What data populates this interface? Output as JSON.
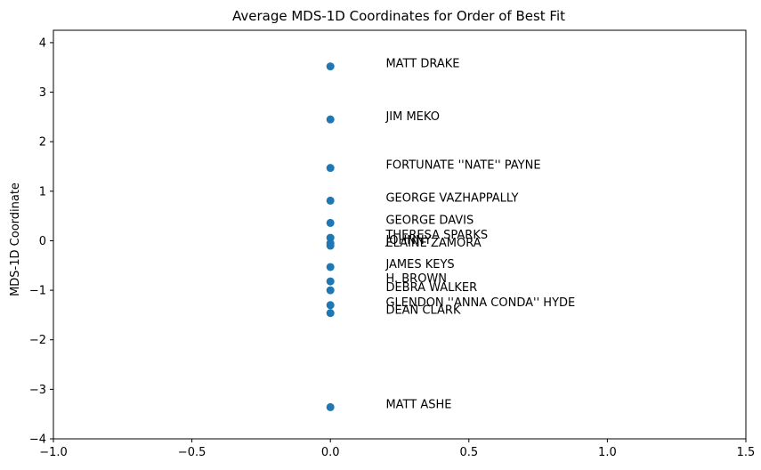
{
  "chart_data": {
    "type": "scatter",
    "title": "Average MDS-1D Coordinates for Order of Best Fit",
    "xlabel": "",
    "ylabel": "MDS-1D Coordinate",
    "xlim": [
      -1.0,
      1.5
    ],
    "ylim": [
      -4.0,
      4.25
    ],
    "xticks": [
      -1.0,
      -0.5,
      0.0,
      0.5,
      1.0,
      1.5
    ],
    "xtick_labels": [
      "−1.0",
      "−0.5",
      "0.0",
      "0.5",
      "1.0",
      "1.5"
    ],
    "yticks": [
      -4,
      -3,
      -2,
      -1,
      0,
      1,
      2,
      3,
      4
    ],
    "ytick_labels": [
      "−4",
      "−3",
      "−2",
      "−1",
      "0",
      "1",
      "2",
      "3",
      "4"
    ],
    "marker_color": "#1f77b4",
    "grid": false,
    "label_x_offset": 0.2,
    "points": [
      {
        "x": 0,
        "y": 3.52,
        "label": "MATT DRAKE"
      },
      {
        "x": 0,
        "y": 2.45,
        "label": "JIM MEKO"
      },
      {
        "x": 0,
        "y": 1.47,
        "label": "FORTUNATE ''NATE'' PAYNE"
      },
      {
        "x": 0,
        "y": 0.81,
        "label": "GEORGE VAZHAPPALLY"
      },
      {
        "x": 0,
        "y": 0.36,
        "label": "GEORGE DAVIS"
      },
      {
        "x": 0,
        "y": 0.06,
        "label": "THERESA SPARKS"
      },
      {
        "x": 0,
        "y": -0.05,
        "label": "JOHNNY"
      },
      {
        "x": 0,
        "y": -0.1,
        "label": "ELAINE ZAMORA"
      },
      {
        "x": 0,
        "y": -0.53,
        "label": "JAMES KEYS"
      },
      {
        "x": 0,
        "y": -0.82,
        "label": "H. BROWN"
      },
      {
        "x": 0,
        "y": -1.0,
        "label": "DEBRA WALKER"
      },
      {
        "x": 0,
        "y": -1.3,
        "label": "GLENDON ''ANNA CONDA'' HYDE"
      },
      {
        "x": 0,
        "y": -1.46,
        "label": "DEAN CLARK"
      },
      {
        "x": 0,
        "y": -3.36,
        "label": "MATT ASHE"
      }
    ]
  }
}
